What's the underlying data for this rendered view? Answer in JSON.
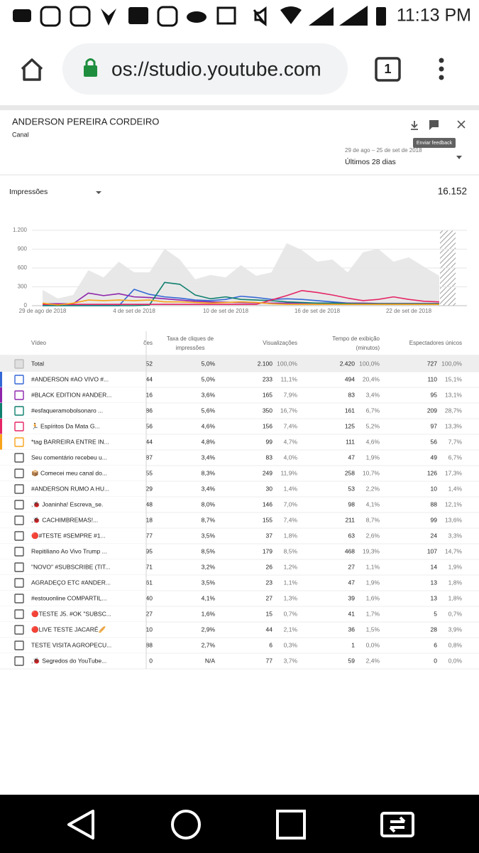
{
  "status_bar": {
    "time": "11:13 PM"
  },
  "browser": {
    "url": "os://studio.youtube.com",
    "tabs": "1"
  },
  "header": {
    "title": "ANDERSON PEREIRA CORDEIRO",
    "subtitle": "Canal",
    "tooltip": "Enviar feedback",
    "date_range": "29 de ago – 25 de set de 2018",
    "period": "Últimos 28 dias"
  },
  "metric": {
    "name": "Impressões",
    "total": "16.152"
  },
  "chart_data": {
    "type": "line",
    "categories": [
      "29 de ago de 2018",
      null,
      null,
      null,
      null,
      null,
      "4 de set de 2018",
      null,
      null,
      null,
      null,
      null,
      "10 de set de 2018",
      null,
      null,
      null,
      null,
      null,
      "16 de set de 2018",
      null,
      null,
      null,
      null,
      null,
      "22 de set de 2018",
      null,
      null
    ],
    "area": {
      "color": "#e8e8e8",
      "values": [
        250,
        115,
        170,
        565,
        450,
        700,
        530,
        530,
        905,
        735,
        420,
        490,
        450,
        645,
        475,
        530,
        995,
        885,
        700,
        735,
        530,
        850,
        905,
        700,
        770,
        620,
        475
      ]
    },
    "series": [
      {
        "name": "#ANDERSON #AO VIVO #...",
        "color": "#3367d6",
        "values": [
          0,
          0,
          0,
          0,
          0,
          0,
          260,
          180,
          140,
          120,
          90,
          80,
          100,
          150,
          130,
          100,
          110,
          100,
          80,
          60,
          40,
          30,
          25,
          20,
          20,
          20,
          20
        ]
      },
      {
        "name": "#BLACK EDITION #ANDER...",
        "color": "#8e24aa",
        "values": [
          30,
          30,
          30,
          200,
          160,
          190,
          140,
          130,
          110,
          90,
          70,
          60,
          55,
          50,
          45,
          40,
          40,
          40,
          40,
          40,
          40,
          40,
          35,
          35,
          35,
          35,
          35
        ]
      },
      {
        "name": "#esfaqueramobolsonaro ...",
        "color": "#0f7f6e",
        "values": [
          0,
          0,
          0,
          0,
          0,
          0,
          0,
          10,
          370,
          340,
          170,
          110,
          140,
          100,
          90,
          80,
          60,
          50,
          40,
          40,
          35,
          30,
          30,
          30,
          30,
          30,
          30
        ]
      },
      {
        "name": "🏃 Espíritos Da Mata G...",
        "color": "#e52565",
        "values": [
          20,
          20,
          20,
          20,
          20,
          20,
          20,
          20,
          20,
          20,
          20,
          20,
          20,
          20,
          20,
          90,
          160,
          240,
          210,
          170,
          120,
          80,
          100,
          140,
          100,
          70,
          60
        ]
      },
      {
        "name": "*tag BARREIRA ENTRE IN...",
        "color": "#f9a31a",
        "values": [
          40,
          10,
          40,
          90,
          80,
          90,
          80,
          90,
          60,
          60,
          50,
          40,
          50,
          60,
          50,
          30,
          20,
          20,
          20,
          20,
          20,
          20,
          20,
          20,
          20,
          20,
          20
        ]
      }
    ],
    "ylim": [
      0,
      1200
    ],
    "yticks": [
      0,
      300,
      600,
      900,
      {
        "value": 1200,
        "label": "1.200"
      }
    ],
    "grid": true
  },
  "table": {
    "header": [
      [
        "Vídeo"
      ],
      [
        "ões"
      ],
      [
        "Taxa de cliques de",
        "impressões"
      ],
      [
        "Visualizações"
      ],
      [
        "Tempo de exibição",
        "(minutos)"
      ],
      [
        "Espectadores únicos"
      ]
    ],
    "total": [
      "Total",
      "52",
      "5,0%",
      "2.100",
      "100,0%",
      "2.420",
      "100,0%",
      "727",
      "100,0%"
    ],
    "series_rows": [
      [
        "44",
        "5,0%",
        "233",
        "11,1%",
        "494",
        "20,4%",
        "110",
        "15,1%"
      ],
      [
        "16",
        "3,6%",
        "165",
        "7,9%",
        "83",
        "3,4%",
        "95",
        "13,1%"
      ],
      [
        "86",
        "5,6%",
        "350",
        "16,7%",
        "161",
        "6,7%",
        "209",
        "28,7%"
      ],
      [
        "56",
        "4,6%",
        "156",
        "7,4%",
        "125",
        "5,2%",
        "97",
        "13,3%"
      ],
      [
        "44",
        "4,8%",
        "99",
        "4,7%",
        "111",
        "4,6%",
        "56",
        "7,7%"
      ]
    ],
    "rows": [
      [
        "Seu comentário recebeu u...",
        "87",
        "3,4%",
        "83",
        "4,0%",
        "47",
        "1,9%",
        "49",
        "6,7%"
      ],
      [
        "📦 Comecei meu canal do...",
        "55",
        "8,3%",
        "249",
        "11,9%",
        "258",
        "10,7%",
        "126",
        "17,3%"
      ],
      [
        "#ANDERSON RUMO A HU...",
        "29",
        "3,4%",
        "30",
        "1,4%",
        "53",
        "2,2%",
        "10",
        "1,4%"
      ],
      [
        ",🐞 Joaninha! Escreva_se.",
        "48",
        "8,0%",
        "146",
        "7,0%",
        "98",
        "4,1%",
        "88",
        "12,1%"
      ],
      [
        ",🐞 CACHIMBREMAS!...",
        "18",
        "8,7%",
        "155",
        "7,4%",
        "211",
        "8,7%",
        "99",
        "13,6%"
      ],
      [
        "🔴#TESTE #SEMPRE #1...",
        "77",
        "3,5%",
        "37",
        "1,8%",
        "63",
        "2,6%",
        "24",
        "3,3%"
      ],
      [
        "Repitiliano Ao Vivo Trump ...",
        "95",
        "8,5%",
        "179",
        "8,5%",
        "468",
        "19,3%",
        "107",
        "14,7%"
      ],
      [
        "\"NOVO\" #SUBSCRIBE (TIT...",
        "71",
        "3,2%",
        "26",
        "1,2%",
        "27",
        "1,1%",
        "14",
        "1,9%"
      ],
      [
        "AGRADEÇO ETC #ANDER...",
        "61",
        "3,5%",
        "23",
        "1,1%",
        "47",
        "1,9%",
        "13",
        "1,8%"
      ],
      [
        "#estouonline COMPARTIL...",
        "40",
        "4,1%",
        "27",
        "1,3%",
        "39",
        "1,6%",
        "13",
        "1,8%"
      ],
      [
        "🔴TESTE J5. #OK \"SUBSC...",
        "27",
        "1,6%",
        "15",
        "0,7%",
        "41",
        "1,7%",
        "5",
        "0,7%"
      ],
      [
        "🔴LIVE TESTE JACARÉ🥖",
        "10",
        "2,9%",
        "44",
        "2,1%",
        "36",
        "1,5%",
        "28",
        "3,9%"
      ],
      [
        "TESTE VISITA AGROPECU...",
        "88",
        "2,7%",
        "6",
        "0,3%",
        "1",
        "0,0%",
        "6",
        "0,8%"
      ],
      [
        ",🐞 Segredos do YouTube...",
        "0",
        "N/A",
        "77",
        "3,7%",
        "59",
        "2,4%",
        "0",
        "0,0%"
      ]
    ]
  }
}
